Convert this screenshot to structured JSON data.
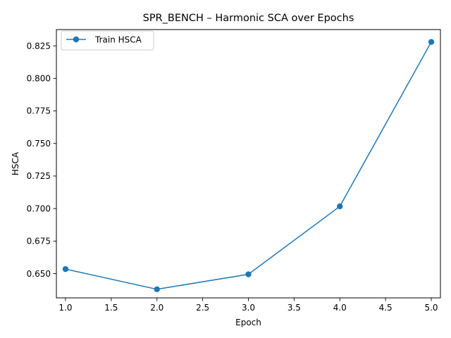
{
  "chart_data": {
    "type": "line",
    "title": "SPR_BENCH – Harmonic SCA over Epochs",
    "xlabel": "Epoch",
    "ylabel": "HSCA",
    "xlim": [
      0.9,
      5.1
    ],
    "ylim": [
      0.6314,
      0.8375
    ],
    "x_ticks": [
      1.0,
      1.5,
      2.0,
      2.5,
      3.0,
      3.5,
      4.0,
      4.5,
      5.0
    ],
    "x_tick_labels": [
      "1.0",
      "1.5",
      "2.0",
      "2.5",
      "3.0",
      "3.5",
      "4.0",
      "4.5",
      "5.0"
    ],
    "y_ticks": [
      0.65,
      0.675,
      0.7,
      0.725,
      0.75,
      0.775,
      0.8,
      0.825
    ],
    "y_tick_labels": [
      "0.650",
      "0.675",
      "0.700",
      "0.725",
      "0.750",
      "0.775",
      "0.800",
      "0.825"
    ],
    "grid": false,
    "legend": {
      "position": "upper-left"
    },
    "series": [
      {
        "name": "Train HSCA",
        "color": "#1f77b4",
        "marker": "circle",
        "x": [
          1,
          2,
          3,
          4,
          5
        ],
        "y": [
          0.6535,
          0.638,
          0.6495,
          0.7017,
          0.828
        ]
      }
    ]
  }
}
